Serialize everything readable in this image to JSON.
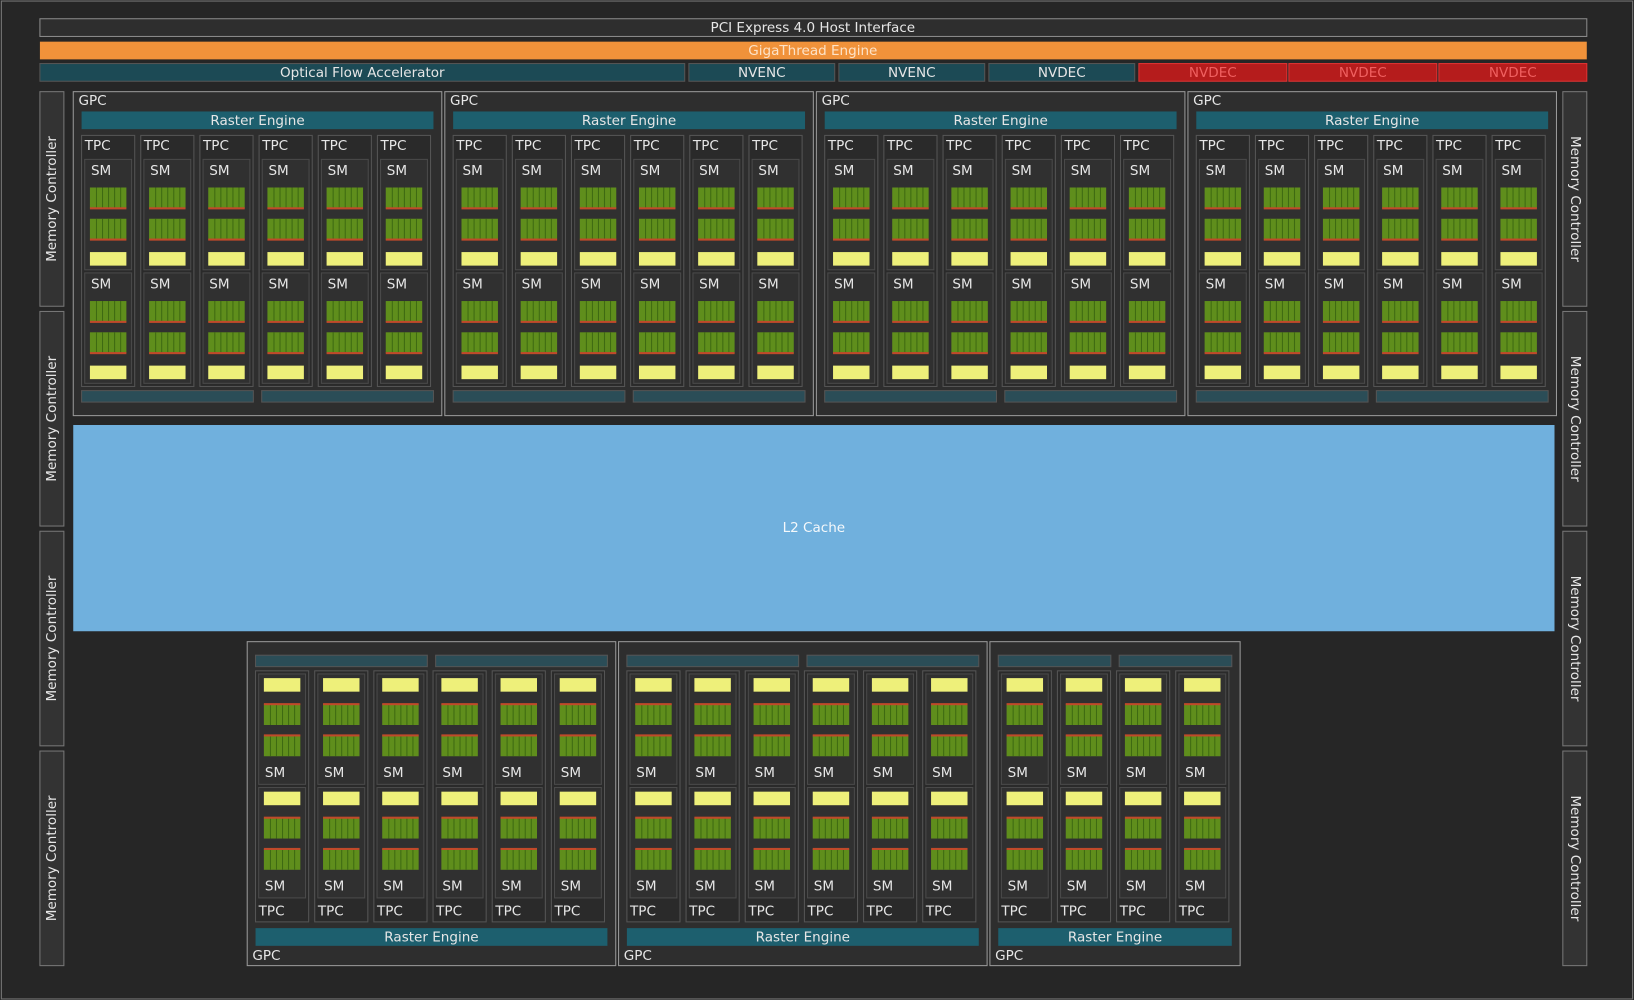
{
  "header": {
    "pci": "PCI Express 4.0 Host Interface",
    "gigathread": "GigaThread Engine"
  },
  "media_engines": [
    "Optical Flow Accelerator",
    "NVENC",
    "NVENC",
    "NVDEC"
  ],
  "disabled_decoders": [
    "NVDEC",
    "NVDEC",
    "NVDEC"
  ],
  "memory_controllers": {
    "left": [
      "Memory Controller",
      "Memory Controller",
      "Memory Controller",
      "Memory Controller"
    ],
    "right": [
      "Memory Controller",
      "Memory Controller",
      "Memory Controller",
      "Memory Controller"
    ]
  },
  "l2_cache": "L2 Cache",
  "gpcs_top": [
    {
      "label": "GPC",
      "raster_engine": "Raster Engine",
      "tpcs": [
        {
          "label": "TPC",
          "sms": [
            "SM",
            "SM"
          ]
        },
        {
          "label": "TPC",
          "sms": [
            "SM",
            "SM"
          ]
        },
        {
          "label": "TPC",
          "sms": [
            "SM",
            "SM"
          ]
        },
        {
          "label": "TPC",
          "sms": [
            "SM",
            "SM"
          ]
        },
        {
          "label": "TPC",
          "sms": [
            "SM",
            "SM"
          ]
        },
        {
          "label": "TPC",
          "sms": [
            "SM",
            "SM"
          ]
        }
      ]
    },
    {
      "label": "GPC",
      "raster_engine": "Raster Engine",
      "tpcs": [
        {
          "label": "TPC",
          "sms": [
            "SM",
            "SM"
          ]
        },
        {
          "label": "TPC",
          "sms": [
            "SM",
            "SM"
          ]
        },
        {
          "label": "TPC",
          "sms": [
            "SM",
            "SM"
          ]
        },
        {
          "label": "TPC",
          "sms": [
            "SM",
            "SM"
          ]
        },
        {
          "label": "TPC",
          "sms": [
            "SM",
            "SM"
          ]
        },
        {
          "label": "TPC",
          "sms": [
            "SM",
            "SM"
          ]
        }
      ]
    },
    {
      "label": "GPC",
      "raster_engine": "Raster Engine",
      "tpcs": [
        {
          "label": "TPC",
          "sms": [
            "SM",
            "SM"
          ]
        },
        {
          "label": "TPC",
          "sms": [
            "SM",
            "SM"
          ]
        },
        {
          "label": "TPC",
          "sms": [
            "SM",
            "SM"
          ]
        },
        {
          "label": "TPC",
          "sms": [
            "SM",
            "SM"
          ]
        },
        {
          "label": "TPC",
          "sms": [
            "SM",
            "SM"
          ]
        },
        {
          "label": "TPC",
          "sms": [
            "SM",
            "SM"
          ]
        }
      ]
    },
    {
      "label": "GPC",
      "raster_engine": "Raster Engine",
      "tpcs": [
        {
          "label": "TPC",
          "sms": [
            "SM",
            "SM"
          ]
        },
        {
          "label": "TPC",
          "sms": [
            "SM",
            "SM"
          ]
        },
        {
          "label": "TPC",
          "sms": [
            "SM",
            "SM"
          ]
        },
        {
          "label": "TPC",
          "sms": [
            "SM",
            "SM"
          ]
        },
        {
          "label": "TPC",
          "sms": [
            "SM",
            "SM"
          ]
        },
        {
          "label": "TPC",
          "sms": [
            "SM",
            "SM"
          ]
        }
      ]
    }
  ],
  "gpcs_bottom": [
    {
      "label": "GPC",
      "raster_engine": "Raster Engine",
      "tpcs": [
        {
          "label": "TPC",
          "sms": [
            "SM",
            "SM"
          ]
        },
        {
          "label": "TPC",
          "sms": [
            "SM",
            "SM"
          ]
        },
        {
          "label": "TPC",
          "sms": [
            "SM",
            "SM"
          ]
        },
        {
          "label": "TPC",
          "sms": [
            "SM",
            "SM"
          ]
        },
        {
          "label": "TPC",
          "sms": [
            "SM",
            "SM"
          ]
        },
        {
          "label": "TPC",
          "sms": [
            "SM",
            "SM"
          ]
        }
      ]
    },
    {
      "label": "GPC",
      "raster_engine": "Raster Engine",
      "tpcs": [
        {
          "label": "TPC",
          "sms": [
            "SM",
            "SM"
          ]
        },
        {
          "label": "TPC",
          "sms": [
            "SM",
            "SM"
          ]
        },
        {
          "label": "TPC",
          "sms": [
            "SM",
            "SM"
          ]
        },
        {
          "label": "TPC",
          "sms": [
            "SM",
            "SM"
          ]
        },
        {
          "label": "TPC",
          "sms": [
            "SM",
            "SM"
          ]
        },
        {
          "label": "TPC",
          "sms": [
            "SM",
            "SM"
          ]
        }
      ]
    },
    {
      "label": "GPC",
      "raster_engine": "Raster Engine",
      "tpcs": [
        {
          "label": "TPC",
          "sms": [
            "SM",
            "SM"
          ]
        },
        {
          "label": "TPC",
          "sms": [
            "SM",
            "SM"
          ]
        },
        {
          "label": "TPC",
          "sms": [
            "SM",
            "SM"
          ]
        },
        {
          "label": "TPC",
          "sms": [
            "SM",
            "SM"
          ]
        }
      ]
    }
  ]
}
